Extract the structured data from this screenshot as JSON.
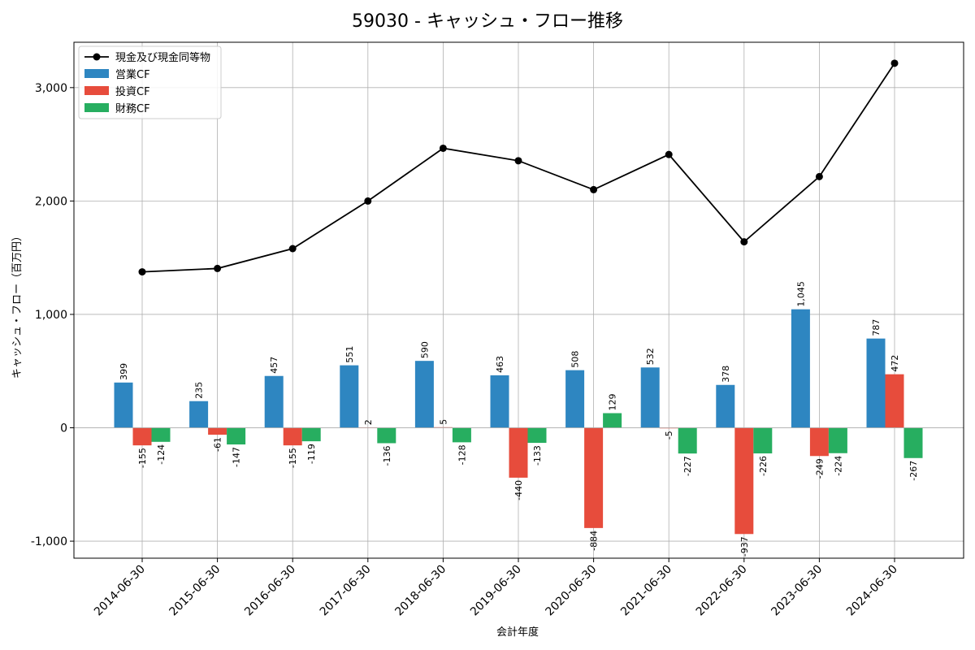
{
  "chart_data": {
    "type": "bar",
    "title": "59030 - キャッシュ・フロー推移",
    "xlabel": "会計年度",
    "ylabel": "キャッシュ・フロー（百万円）",
    "ylim": [
      -1150,
      3400
    ],
    "yticks": [
      -1000,
      0,
      1000,
      2000,
      3000
    ],
    "ytick_labels": [
      "-1,000",
      "0",
      "1,000",
      "2,000",
      "3,000"
    ],
    "grid": true,
    "legend_position": "upper-left",
    "categories": [
      "2014-06-30",
      "2015-06-30",
      "2016-06-30",
      "2017-06-30",
      "2018-06-30",
      "2019-06-30",
      "2020-06-30",
      "2021-06-30",
      "2022-06-30",
      "2023-06-30",
      "2024-06-30"
    ],
    "line_series": {
      "name": "現金及び現金同等物",
      "color": "#000000",
      "values": [
        1375,
        1405,
        1580,
        2000,
        2465,
        2355,
        2100,
        2410,
        1640,
        2215,
        3215
      ]
    },
    "series": [
      {
        "name": "営業CF",
        "color": "#2e86c1",
        "values": [
          399,
          235,
          457,
          551,
          590,
          463,
          508,
          532,
          378,
          1045,
          787
        ],
        "labels": [
          "399",
          "235",
          "457",
          "551",
          "590",
          "463",
          "508",
          "532",
          "378",
          "1,045",
          "787"
        ]
      },
      {
        "name": "投資CF",
        "color": "#e74c3c",
        "values": [
          -155,
          -61,
          -155,
          2,
          5,
          -440,
          -884,
          -5,
          -937,
          -249,
          472
        ],
        "labels": [
          "-155",
          "-61",
          "-155",
          "2",
          "5",
          "-440",
          "-884",
          "-5",
          "-937",
          "-249",
          "472"
        ]
      },
      {
        "name": "財務CF",
        "color": "#27ae60",
        "values": [
          -124,
          -147,
          -119,
          -136,
          -128,
          -133,
          129,
          -227,
          -226,
          -224,
          -267
        ],
        "labels": [
          "-124",
          "-147",
          "-119",
          "-136",
          "-128",
          "-133",
          "129",
          "-227",
          "-226",
          "-224",
          "-267"
        ]
      }
    ]
  }
}
